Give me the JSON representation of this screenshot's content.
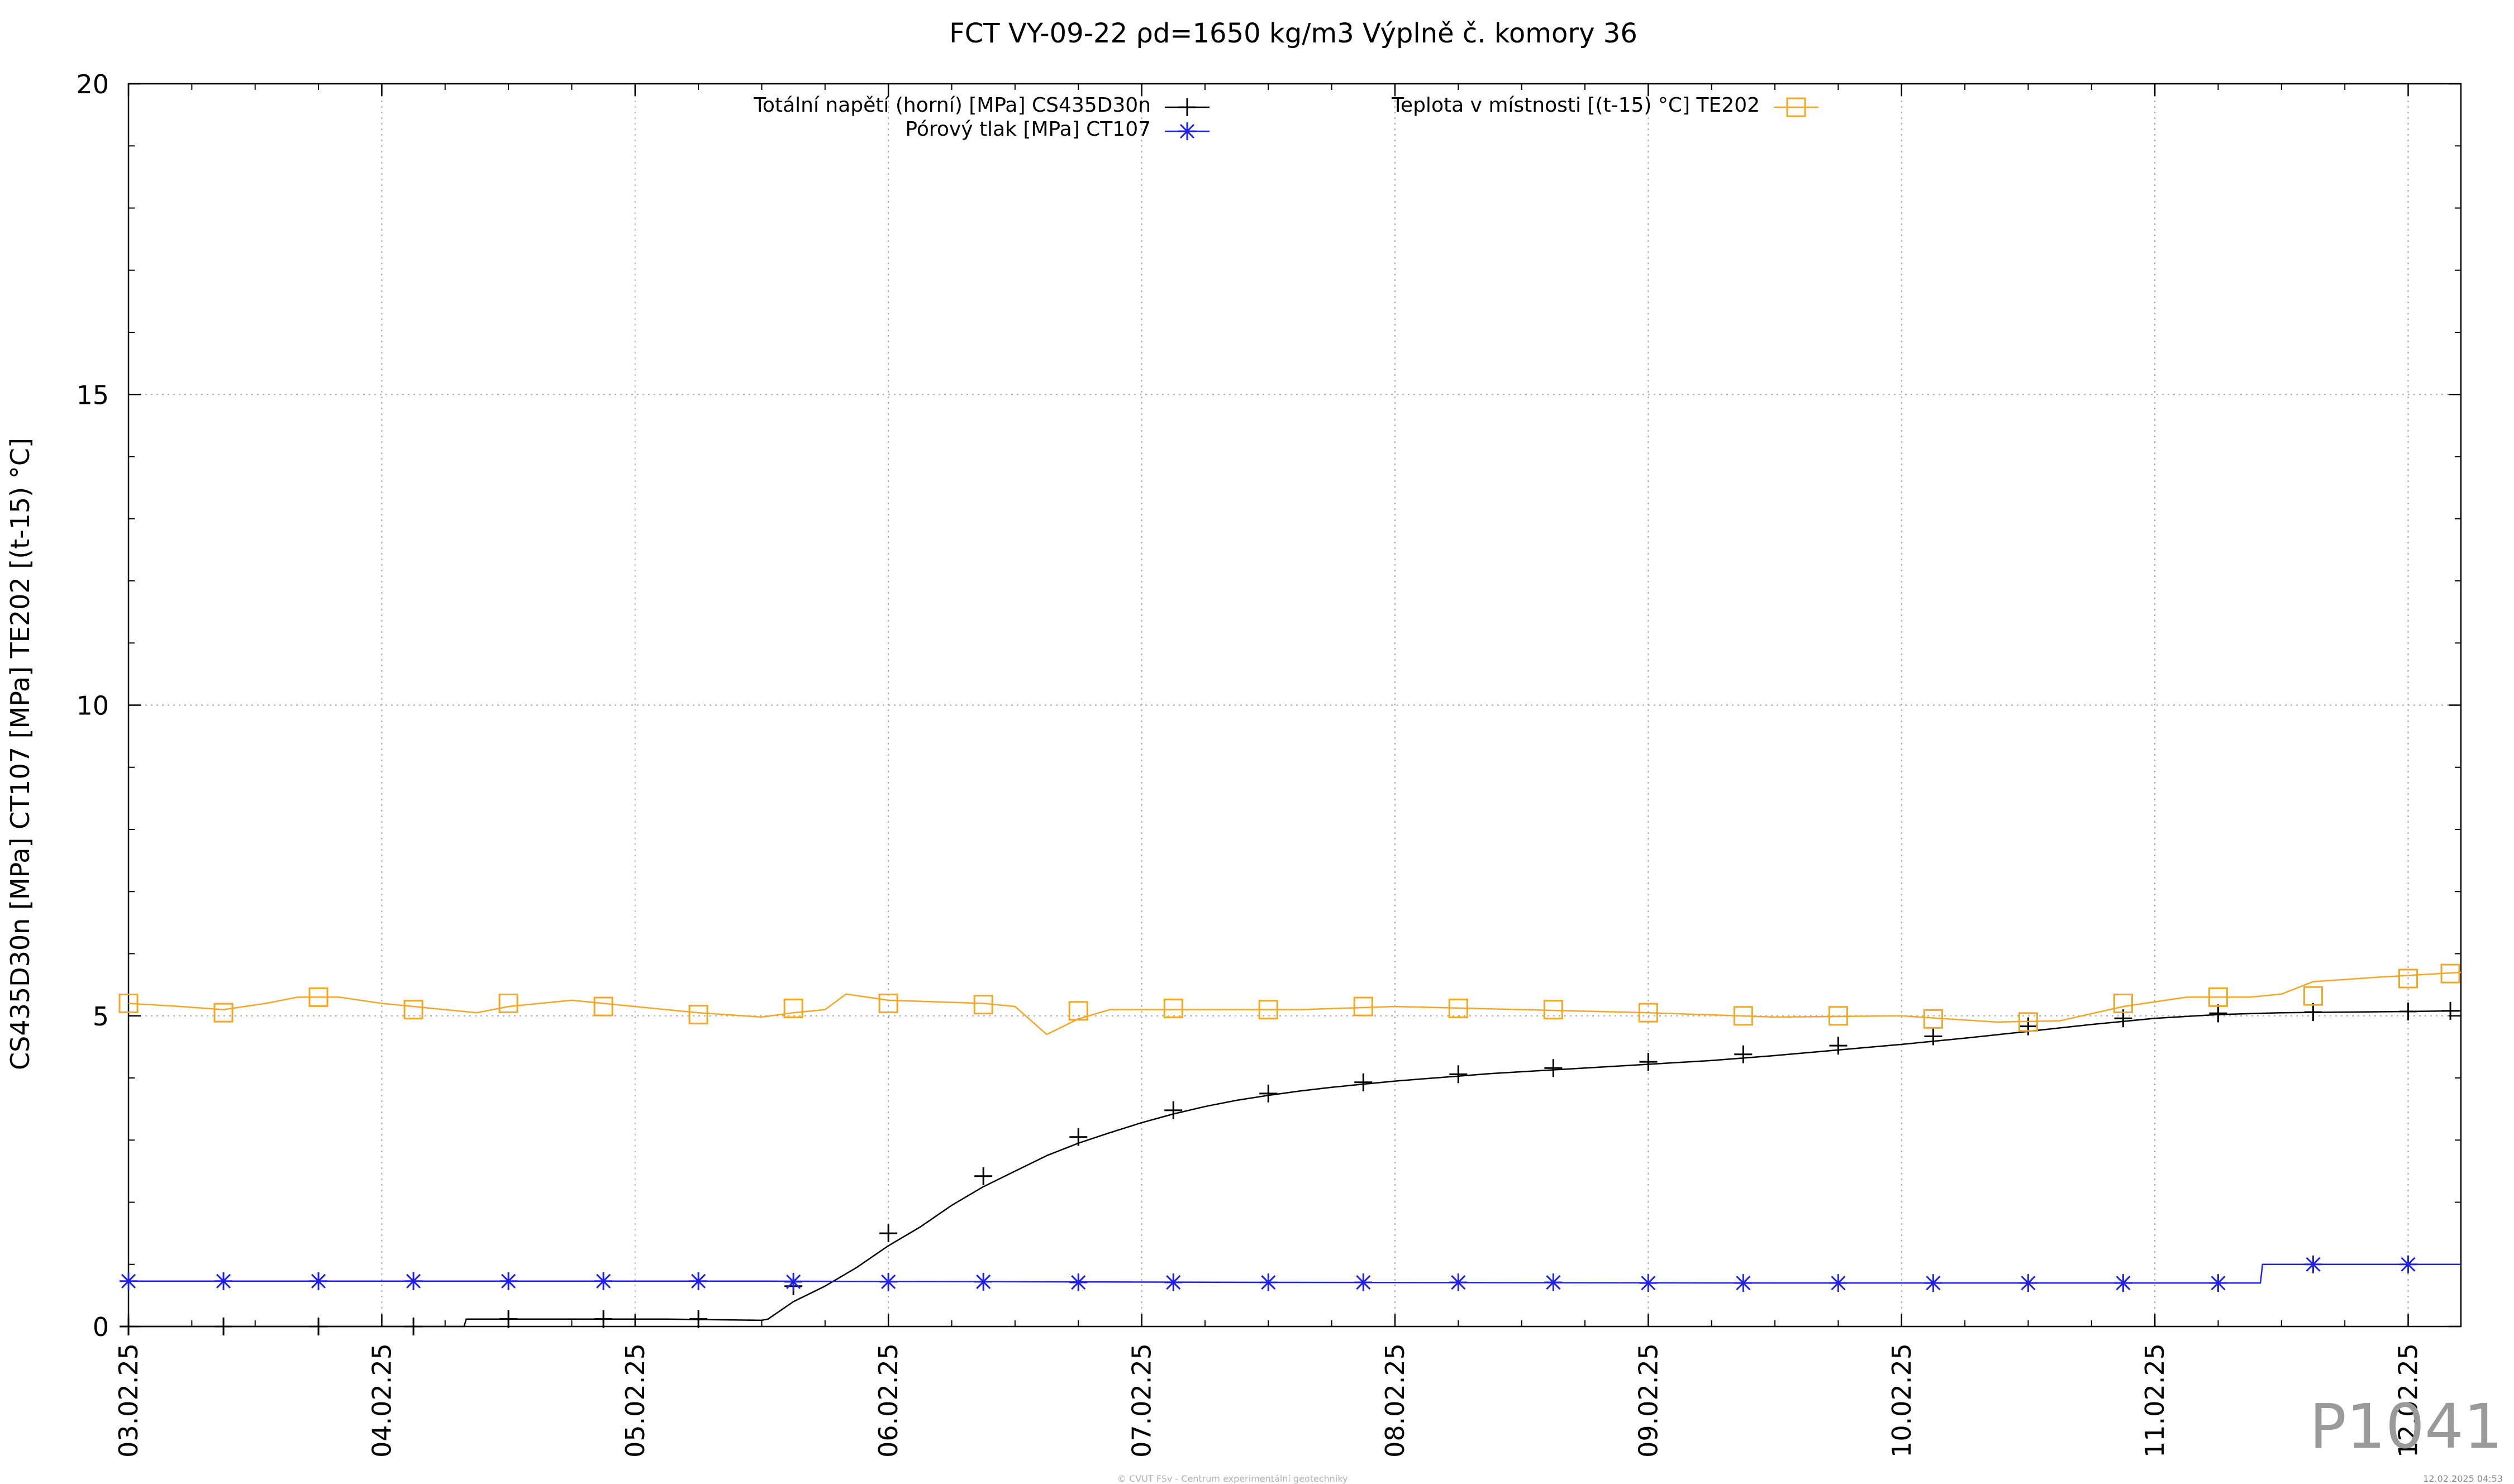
{
  "watermark": "P1041",
  "footer_credit": "© CVUT FSv - Centrum experimentální geotechniky",
  "footer_timestamp": "12.02.2025 04:53",
  "chart_data": {
    "type": "line",
    "title": "FCT VY-09-22 ρd=1650 kg/m3 Výplně č. komory 36",
    "ylabel": "CS435D30n [MPa] CT107 [MPa] TE202 [(t-15) °C]",
    "xlabel": "",
    "ylim": [
      0,
      20
    ],
    "xlim": [
      "2025-02-03 00:00",
      "2025-02-12 05:00"
    ],
    "y_ticks": [
      0,
      5,
      10,
      15,
      20
    ],
    "x_tick_labels": [
      "03.02.25",
      "04.02.25",
      "05.02.25",
      "06.02.25",
      "07.02.25",
      "08.02.25",
      "09.02.25",
      "10.02.25",
      "11.02.25",
      "12.02.25"
    ],
    "grid": true,
    "legend_position": "top",
    "series": [
      {
        "name": "Totální napětí (horní) [MPa] CS435D30n",
        "color": "#000000",
        "marker": "plus",
        "points": [
          [
            "2025-02-03 00:00",
            0.0
          ],
          [
            "2025-02-03 09:00",
            0.0
          ],
          [
            "2025-02-03 18:00",
            0.0
          ],
          [
            "2025-02-04 03:00",
            0.0
          ],
          [
            "2025-02-04 07:48",
            0.0
          ],
          [
            "2025-02-04 08:00",
            0.12
          ],
          [
            "2025-02-04 18:00",
            0.12
          ],
          [
            "2025-02-05 03:00",
            0.12
          ],
          [
            "2025-02-05 12:00",
            0.1
          ],
          [
            "2025-02-05 12:36",
            0.12
          ],
          [
            "2025-02-05 15:00",
            0.4
          ],
          [
            "2025-02-05 18:00",
            0.65
          ],
          [
            "2025-02-05 21:00",
            0.95
          ],
          [
            "2025-02-06 00:00",
            1.3
          ],
          [
            "2025-02-06 03:00",
            1.6
          ],
          [
            "2025-02-06 06:00",
            1.95
          ],
          [
            "2025-02-06 09:00",
            2.25
          ],
          [
            "2025-02-06 12:00",
            2.5
          ],
          [
            "2025-02-06 15:00",
            2.75
          ],
          [
            "2025-02-06 18:00",
            2.95
          ],
          [
            "2025-02-06 21:00",
            3.12
          ],
          [
            "2025-02-07 00:00",
            3.28
          ],
          [
            "2025-02-07 03:00",
            3.42
          ],
          [
            "2025-02-07 06:00",
            3.54
          ],
          [
            "2025-02-07 09:00",
            3.64
          ],
          [
            "2025-02-07 12:00",
            3.72
          ],
          [
            "2025-02-07 15:00",
            3.79
          ],
          [
            "2025-02-07 18:00",
            3.85
          ],
          [
            "2025-02-07 21:00",
            3.9
          ],
          [
            "2025-02-08 00:00",
            3.95
          ],
          [
            "2025-02-08 03:00",
            3.99
          ],
          [
            "2025-02-08 06:00",
            4.03
          ],
          [
            "2025-02-08 09:00",
            4.07
          ],
          [
            "2025-02-08 12:00",
            4.1
          ],
          [
            "2025-02-08 15:00",
            4.13
          ],
          [
            "2025-02-08 18:00",
            4.16
          ],
          [
            "2025-02-08 21:00",
            4.19
          ],
          [
            "2025-02-09 00:00",
            4.22
          ],
          [
            "2025-02-09 06:00",
            4.28
          ],
          [
            "2025-02-09 12:00",
            4.36
          ],
          [
            "2025-02-09 18:00",
            4.45
          ],
          [
            "2025-02-10 00:00",
            4.54
          ],
          [
            "2025-02-10 06:00",
            4.64
          ],
          [
            "2025-02-10 12:00",
            4.75
          ],
          [
            "2025-02-10 18:00",
            4.86
          ],
          [
            "2025-02-11 00:00",
            4.96
          ],
          [
            "2025-02-11 06:00",
            5.02
          ],
          [
            "2025-02-11 12:00",
            5.05
          ],
          [
            "2025-02-11 18:00",
            5.06
          ],
          [
            "2025-02-12 00:00",
            5.07
          ],
          [
            "2025-02-12 05:00",
            5.08
          ]
        ],
        "marker_points": [
          [
            "2025-02-03 00:00",
            0.0
          ],
          [
            "2025-02-03 09:00",
            0.0
          ],
          [
            "2025-02-03 18:00",
            0.0
          ],
          [
            "2025-02-04 03:00",
            0.0
          ],
          [
            "2025-02-04 12:00",
            0.12
          ],
          [
            "2025-02-04 21:00",
            0.12
          ],
          [
            "2025-02-05 06:00",
            0.12
          ],
          [
            "2025-02-05 15:00",
            0.65
          ],
          [
            "2025-02-06 00:00",
            1.5
          ],
          [
            "2025-02-06 09:00",
            2.42
          ],
          [
            "2025-02-06 18:00",
            3.05
          ],
          [
            "2025-02-07 03:00",
            3.48
          ],
          [
            "2025-02-07 12:00",
            3.75
          ],
          [
            "2025-02-07 21:00",
            3.93
          ],
          [
            "2025-02-08 06:00",
            4.06
          ],
          [
            "2025-02-08 15:00",
            4.16
          ],
          [
            "2025-02-09 00:00",
            4.26
          ],
          [
            "2025-02-09 09:00",
            4.38
          ],
          [
            "2025-02-09 18:00",
            4.52
          ],
          [
            "2025-02-10 03:00",
            4.67
          ],
          [
            "2025-02-10 12:00",
            4.83
          ],
          [
            "2025-02-10 21:00",
            4.96
          ],
          [
            "2025-02-11 06:00",
            5.04
          ],
          [
            "2025-02-11 15:00",
            5.06
          ],
          [
            "2025-02-12 00:00",
            5.07
          ],
          [
            "2025-02-12 04:00",
            5.08
          ]
        ]
      },
      {
        "name": "Pórový tlak [MPa] CT107",
        "color": "#2020ee",
        "marker": "star",
        "points": [
          [
            "2025-02-03 00:00",
            0.73
          ],
          [
            "2025-02-05 12:00",
            0.73
          ],
          [
            "2025-02-06 12:00",
            0.72
          ],
          [
            "2025-02-07 12:00",
            0.71
          ],
          [
            "2025-02-09 12:00",
            0.7
          ],
          [
            "2025-02-11 10:00",
            0.7
          ],
          [
            "2025-02-11 10:12",
            1.0
          ],
          [
            "2025-02-12 05:00",
            1.0
          ]
        ],
        "marker_points": [
          [
            "2025-02-03 00:00",
            0.73
          ],
          [
            "2025-02-03 09:00",
            0.73
          ],
          [
            "2025-02-03 18:00",
            0.73
          ],
          [
            "2025-02-04 03:00",
            0.73
          ],
          [
            "2025-02-04 12:00",
            0.73
          ],
          [
            "2025-02-04 21:00",
            0.73
          ],
          [
            "2025-02-05 06:00",
            0.73
          ],
          [
            "2025-02-05 15:00",
            0.72
          ],
          [
            "2025-02-06 00:00",
            0.72
          ],
          [
            "2025-02-06 09:00",
            0.72
          ],
          [
            "2025-02-06 18:00",
            0.71
          ],
          [
            "2025-02-07 03:00",
            0.71
          ],
          [
            "2025-02-07 12:00",
            0.71
          ],
          [
            "2025-02-07 21:00",
            0.71
          ],
          [
            "2025-02-08 06:00",
            0.71
          ],
          [
            "2025-02-08 15:00",
            0.71
          ],
          [
            "2025-02-09 00:00",
            0.7
          ],
          [
            "2025-02-09 09:00",
            0.7
          ],
          [
            "2025-02-09 18:00",
            0.7
          ],
          [
            "2025-02-10 03:00",
            0.7
          ],
          [
            "2025-02-10 12:00",
            0.7
          ],
          [
            "2025-02-10 21:00",
            0.7
          ],
          [
            "2025-02-11 06:00",
            0.7
          ],
          [
            "2025-02-11 15:00",
            1.0
          ],
          [
            "2025-02-12 00:00",
            1.0
          ]
        ]
      },
      {
        "name": "Teplota v místnosti [(t-15) °C] TE202",
        "color": "#f5a623",
        "marker": "square",
        "points": [
          [
            "2025-02-03 00:00",
            5.2
          ],
          [
            "2025-02-03 05:00",
            5.15
          ],
          [
            "2025-02-03 09:00",
            5.1
          ],
          [
            "2025-02-03 13:00",
            5.2
          ],
          [
            "2025-02-03 16:00",
            5.3
          ],
          [
            "2025-02-03 20:00",
            5.3
          ],
          [
            "2025-02-04 00:00",
            5.2
          ],
          [
            "2025-02-04 06:00",
            5.1
          ],
          [
            "2025-02-04 09:00",
            5.05
          ],
          [
            "2025-02-04 12:00",
            5.15
          ],
          [
            "2025-02-04 18:00",
            5.25
          ],
          [
            "2025-02-05 00:00",
            5.15
          ],
          [
            "2025-02-05 06:00",
            5.05
          ],
          [
            "2025-02-05 12:00",
            4.98
          ],
          [
            "2025-02-05 15:00",
            5.05
          ],
          [
            "2025-02-05 18:00",
            5.1
          ],
          [
            "2025-02-05 20:00",
            5.35
          ],
          [
            "2025-02-06 00:00",
            5.25
          ],
          [
            "2025-02-06 09:00",
            5.2
          ],
          [
            "2025-02-06 12:00",
            5.15
          ],
          [
            "2025-02-06 15:00",
            4.7
          ],
          [
            "2025-02-06 18:00",
            4.95
          ],
          [
            "2025-02-06 21:00",
            5.1
          ],
          [
            "2025-02-07 06:00",
            5.1
          ],
          [
            "2025-02-07 15:00",
            5.1
          ],
          [
            "2025-02-08 00:00",
            5.15
          ],
          [
            "2025-02-08 12:00",
            5.1
          ],
          [
            "2025-02-09 00:00",
            5.05
          ],
          [
            "2025-02-09 12:00",
            4.98
          ],
          [
            "2025-02-10 00:00",
            5.0
          ],
          [
            "2025-02-10 09:00",
            4.9
          ],
          [
            "2025-02-10 15:00",
            4.92
          ],
          [
            "2025-02-10 21:00",
            5.15
          ],
          [
            "2025-02-11 03:00",
            5.3
          ],
          [
            "2025-02-11 09:00",
            5.3
          ],
          [
            "2025-02-11 12:00",
            5.35
          ],
          [
            "2025-02-11 15:00",
            5.55
          ],
          [
            "2025-02-11 21:00",
            5.62
          ],
          [
            "2025-02-12 05:00",
            5.7
          ]
        ],
        "marker_points": [
          [
            "2025-02-03 00:00",
            5.2
          ],
          [
            "2025-02-03 09:00",
            5.05
          ],
          [
            "2025-02-03 18:00",
            5.3
          ],
          [
            "2025-02-04 03:00",
            5.1
          ],
          [
            "2025-02-04 12:00",
            5.2
          ],
          [
            "2025-02-04 21:00",
            5.15
          ],
          [
            "2025-02-05 06:00",
            5.02
          ],
          [
            "2025-02-05 15:00",
            5.12
          ],
          [
            "2025-02-06 00:00",
            5.2
          ],
          [
            "2025-02-06 09:00",
            5.18
          ],
          [
            "2025-02-06 18:00",
            5.08
          ],
          [
            "2025-02-07 03:00",
            5.12
          ],
          [
            "2025-02-07 12:00",
            5.1
          ],
          [
            "2025-02-07 21:00",
            5.15
          ],
          [
            "2025-02-08 06:00",
            5.12
          ],
          [
            "2025-02-08 15:00",
            5.1
          ],
          [
            "2025-02-09 00:00",
            5.05
          ],
          [
            "2025-02-09 09:00",
            5.0
          ],
          [
            "2025-02-09 18:00",
            5.0
          ],
          [
            "2025-02-10 03:00",
            4.95
          ],
          [
            "2025-02-10 12:00",
            4.9
          ],
          [
            "2025-02-10 21:00",
            5.2
          ],
          [
            "2025-02-11 06:00",
            5.3
          ],
          [
            "2025-02-11 15:00",
            5.32
          ],
          [
            "2025-02-12 00:00",
            5.6
          ],
          [
            "2025-02-12 04:00",
            5.68
          ]
        ]
      }
    ]
  }
}
